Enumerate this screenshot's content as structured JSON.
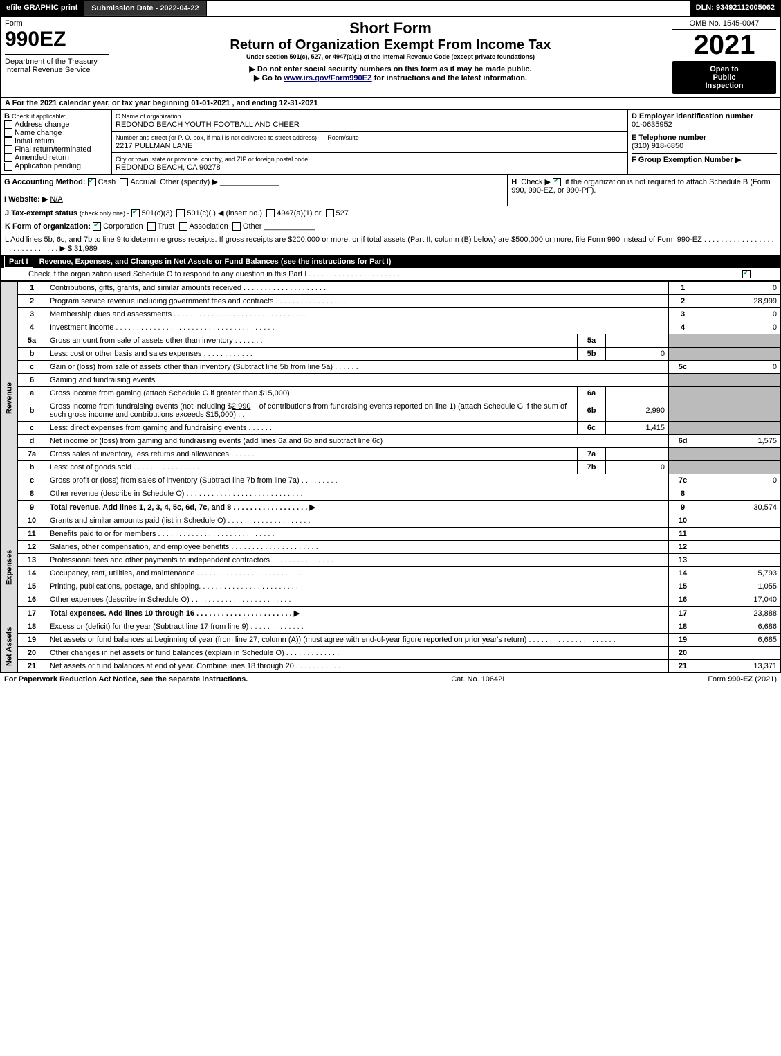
{
  "topbar": {
    "efile": "efile GRAPHIC print",
    "submission_label": "Submission Date - 2022-04-22",
    "dln_label": "DLN: 93492112005062"
  },
  "header": {
    "form_word": "Form",
    "form_id": "990EZ",
    "dept1": "Department of the Treasury",
    "dept2": "Internal Revenue Service",
    "title1": "Short Form",
    "title2": "Return of Organization Exempt From Income Tax",
    "subtitle": "Under section 501(c), 527, or 4947(a)(1) of the Internal Revenue Code (except private foundations)",
    "note1": "▶ Do not enter social security numbers on this form as it may be made public.",
    "note2_pre": "▶ Go to ",
    "note2_link": "www.irs.gov/Form990EZ",
    "note2_post": " for instructions and the latest information.",
    "omb": "OMB No. 1545-0047",
    "year": "2021",
    "open1": "Open to",
    "open2": "Public",
    "open3": "Inspection"
  },
  "sectionA": "A  For the 2021 calendar year, or tax year beginning 01-01-2021 , and ending 12-31-2021",
  "boxB": {
    "label": "B",
    "sub": "Check if applicable:",
    "items": [
      "Address change",
      "Name change",
      "Initial return",
      "Final return/terminated",
      "Amended return",
      "Application pending"
    ]
  },
  "boxC": {
    "label": "C Name of organization",
    "org": "REDONDO BEACH YOUTH FOOTBALL AND CHEER",
    "street_label": "Number and street (or P. O. box, if mail is not delivered to street address)",
    "room_label": "Room/suite",
    "street": "2217 PULLMAN LANE",
    "city_label": "City or town, state or province, country, and ZIP or foreign postal code",
    "city": "REDONDO BEACH, CA  90278"
  },
  "boxD": {
    "label": "D Employer identification number",
    "value": "01-0635952"
  },
  "boxE": {
    "label": "E Telephone number",
    "value": "(310) 918-6850"
  },
  "boxF": {
    "label": "F Group Exemption Number   ▶",
    "value": ""
  },
  "lineG": {
    "label": "G Accounting Method:",
    "cash": "Cash",
    "accrual": "Accrual",
    "other": "Other (specify) ▶"
  },
  "lineH": {
    "label": "H",
    "text1": "Check ▶",
    "text2": "if the organization is not required to attach Schedule B (Form 990, 990-EZ, or 990-PF)."
  },
  "lineI": {
    "label": "I Website: ▶",
    "value": "N/A"
  },
  "lineJ": {
    "label": "J Tax-exempt status",
    "sub": "(check only one) -",
    "o1": "501(c)(3)",
    "o2": "501(c)(  ) ◀ (insert no.)",
    "o3": "4947(a)(1) or",
    "o4": "527"
  },
  "lineK": {
    "label": "K Form of organization:",
    "o1": "Corporation",
    "o2": "Trust",
    "o3": "Association",
    "o4": "Other"
  },
  "lineL": {
    "text": "L Add lines 5b, 6c, and 7b to line 9 to determine gross receipts. If gross receipts are $200,000 or more, or if total assets (Part II, column (B) below) are $500,000 or more, file Form 990 instead of Form 990-EZ . . . . . . . . . . . . . . . . . . . . . . . . . . . . . .  ▶ $",
    "amount": "31,989"
  },
  "part1": {
    "label": "Part I",
    "title": "Revenue, Expenses, and Changes in Net Assets or Fund Balances (see the instructions for Part I)",
    "check_line": "Check if the organization used Schedule O to respond to any question in this Part I . . . . . . . . . . . . . . . . . . . . . ."
  },
  "lines": {
    "l1": {
      "n": "1",
      "t": "Contributions, gifts, grants, and similar amounts received . . . . . . . . . . . . . . . . . . . .",
      "rn": "1",
      "amt": "0"
    },
    "l2": {
      "n": "2",
      "t": "Program service revenue including government fees and contracts . . . . . . . . . . . . . . . . .",
      "rn": "2",
      "amt": "28,999"
    },
    "l3": {
      "n": "3",
      "t": "Membership dues and assessments . . . . . . . . . . . . . . . . . . . . . . . . . . . . . . . .",
      "rn": "3",
      "amt": "0"
    },
    "l4": {
      "n": "4",
      "t": "Investment income . . . . . . . . . . . . . . . . . . . . . . . . . . . . . . . . . . . . . .",
      "rn": "4",
      "amt": "0"
    },
    "l5a": {
      "n": "5a",
      "t": "Gross amount from sale of assets other than inventory . . . . . . .",
      "mn": "5a",
      "mamt": ""
    },
    "l5b": {
      "n": "b",
      "t": "Less: cost or other basis and sales expenses . . . . . . . . . . . .",
      "mn": "5b",
      "mamt": "0"
    },
    "l5c": {
      "n": "c",
      "t": "Gain or (loss) from sale of assets other than inventory (Subtract line 5b from line 5a) . . . . . .",
      "rn": "5c",
      "amt": "0"
    },
    "l6": {
      "n": "6",
      "t": "Gaming and fundraising events"
    },
    "l6a": {
      "n": "a",
      "t": "Gross income from gaming (attach Schedule G if greater than $15,000)",
      "mn": "6a",
      "mamt": ""
    },
    "l6b": {
      "n": "b",
      "t1": "Gross income from fundraising events (not including $",
      "amt_inline": "2,990",
      "t2": "of contributions from fundraising events reported on line 1) (attach Schedule G if the sum of such gross income and contributions exceeds $15,000) . .",
      "mn": "6b",
      "mamt": "2,990"
    },
    "l6c": {
      "n": "c",
      "t": "Less: direct expenses from gaming and fundraising events . . . . . .",
      "mn": "6c",
      "mamt": "1,415"
    },
    "l6d": {
      "n": "d",
      "t": "Net income or (loss) from gaming and fundraising events (add lines 6a and 6b and subtract line 6c)",
      "rn": "6d",
      "amt": "1,575"
    },
    "l7a": {
      "n": "7a",
      "t": "Gross sales of inventory, less returns and allowances . . . . . .",
      "mn": "7a",
      "mamt": ""
    },
    "l7b": {
      "n": "b",
      "t": "Less: cost of goods sold    . . . . . . . . . . . . . . . .",
      "mn": "7b",
      "mamt": "0"
    },
    "l7c": {
      "n": "c",
      "t": "Gross profit or (loss) from sales of inventory (Subtract line 7b from line 7a) . . . . . . . . .",
      "rn": "7c",
      "amt": "0"
    },
    "l8": {
      "n": "8",
      "t": "Other revenue (describe in Schedule O) . . . . . . . . . . . . . . . . . . . . . . . . . . . .",
      "rn": "8",
      "amt": ""
    },
    "l9": {
      "n": "9",
      "t": "Total revenue. Add lines 1, 2, 3, 4, 5c, 6d, 7c, and 8 . . . . . . . . . . . . . . . . . . ▶",
      "rn": "9",
      "amt": "30,574"
    },
    "l10": {
      "n": "10",
      "t": "Grants and similar amounts paid (list in Schedule O) . . . . . . . . . . . . . . . . . . . .",
      "rn": "10",
      "amt": ""
    },
    "l11": {
      "n": "11",
      "t": "Benefits paid to or for members    . . . . . . . . . . . . . . . . . . . . . . . . . . . .",
      "rn": "11",
      "amt": ""
    },
    "l12": {
      "n": "12",
      "t": "Salaries, other compensation, and employee benefits . . . . . . . . . . . . . . . . . . . . .",
      "rn": "12",
      "amt": ""
    },
    "l13": {
      "n": "13",
      "t": "Professional fees and other payments to independent contractors . . . . . . . . . . . . . . .",
      "rn": "13",
      "amt": ""
    },
    "l14": {
      "n": "14",
      "t": "Occupancy, rent, utilities, and maintenance . . . . . . . . . . . . . . . . . . . . . . . . .",
      "rn": "14",
      "amt": "5,793"
    },
    "l15": {
      "n": "15",
      "t": "Printing, publications, postage, and shipping. . . . . . . . . . . . . . . . . . . . . . . .",
      "rn": "15",
      "amt": "1,055"
    },
    "l16": {
      "n": "16",
      "t": "Other expenses (describe in Schedule O)    . . . . . . . . . . . . . . . . . . . . . . . .",
      "rn": "16",
      "amt": "17,040"
    },
    "l17": {
      "n": "17",
      "t": "Total expenses. Add lines 10 through 16    . . . . . . . . . . . . . . . . . . . . . . . ▶",
      "rn": "17",
      "amt": "23,888"
    },
    "l18": {
      "n": "18",
      "t": "Excess or (deficit) for the year (Subtract line 17 from line 9)    . . . . . . . . . . . . .",
      "rn": "18",
      "amt": "6,686"
    },
    "l19": {
      "n": "19",
      "t": "Net assets or fund balances at beginning of year (from line 27, column (A)) (must agree with end-of-year figure reported on prior year's return) . . . . . . . . . . . . . . . . . . . . .",
      "rn": "19",
      "amt": "6,685"
    },
    "l20": {
      "n": "20",
      "t": "Other changes in net assets or fund balances (explain in Schedule O) . . . . . . . . . . . . .",
      "rn": "20",
      "amt": ""
    },
    "l21": {
      "n": "21",
      "t": "Net assets or fund balances at end of year. Combine lines 18 through 20 . . . . . . . . . . .",
      "rn": "21",
      "amt": "13,371"
    }
  },
  "side_labels": {
    "revenue": "Revenue",
    "expenses": "Expenses",
    "netassets": "Net Assets"
  },
  "footer": {
    "left": "For Paperwork Reduction Act Notice, see the separate instructions.",
    "center": "Cat. No. 10642I",
    "right": "Form 990-EZ (2021)"
  }
}
